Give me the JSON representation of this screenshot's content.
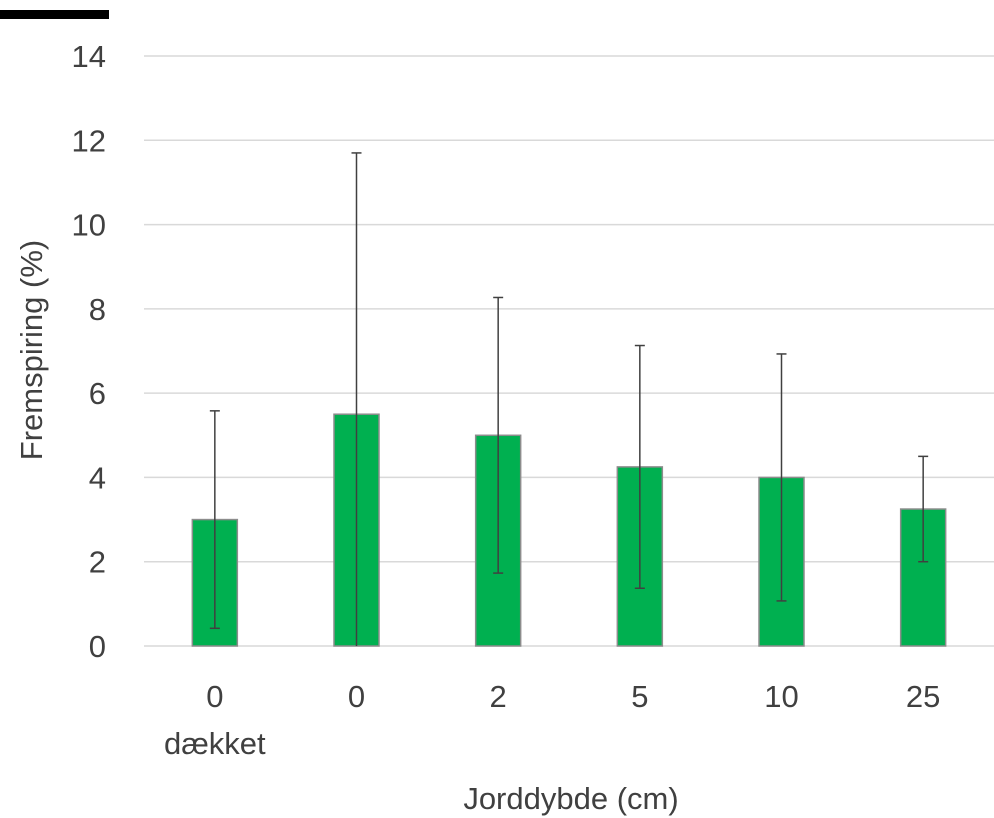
{
  "chart_data": {
    "type": "bar",
    "categories": [
      "0",
      "0",
      "2",
      "5",
      "10",
      "25"
    ],
    "category_sublabels": [
      "dækket",
      "",
      "",
      "",
      "",
      ""
    ],
    "values": [
      3.0,
      5.5,
      5.0,
      4.25,
      4.0,
      3.25
    ],
    "error_plus_minus": [
      2.58,
      6.2,
      3.27,
      2.88,
      2.93,
      1.25
    ],
    "xlabel": "Jorddybde (cm)",
    "ylabel": "Fremspiring (%)",
    "ylim": [
      0,
      14
    ],
    "yticks": [
      0,
      2,
      4,
      6,
      8,
      10,
      12,
      14
    ],
    "grid": true,
    "legend": "none",
    "bar_color": "#00b050"
  }
}
